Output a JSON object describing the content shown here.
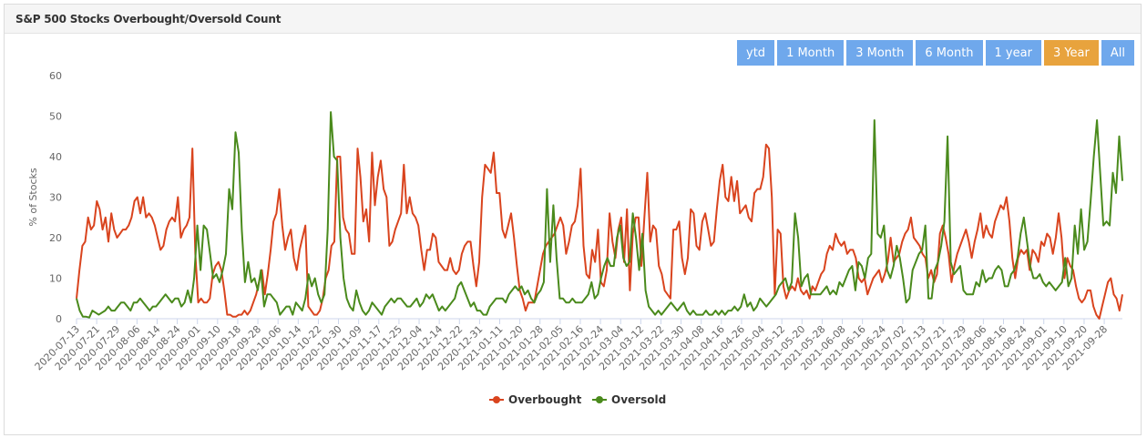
{
  "header": {
    "title": "S&P 500 Stocks Overbought/Oversold Count"
  },
  "range_buttons": [
    {
      "label": "ytd",
      "active": false
    },
    {
      "label": "1 Month",
      "active": false
    },
    {
      "label": "3 Month",
      "active": false
    },
    {
      "label": "6 Month",
      "active": false
    },
    {
      "label": "1 year",
      "active": false
    },
    {
      "label": "3 Year",
      "active": true
    },
    {
      "label": "All",
      "active": false
    }
  ],
  "colors": {
    "overbought": "#d9441e",
    "oversold": "#4a8a1c",
    "active_button": "#e8a33d",
    "button": "#6fa8ec"
  },
  "chart_data": {
    "type": "line",
    "title": "",
    "xlabel": "",
    "ylabel": "% of Stocks",
    "ylim": [
      0,
      60
    ],
    "yticks": [
      0,
      10,
      20,
      30,
      40,
      50,
      60
    ],
    "grid": false,
    "legend": "bottom-center",
    "x_tick_labels": [
      "2020-07-13",
      "2020-07-21",
      "2020-07-29",
      "2020-08-06",
      "2020-08-14",
      "2020-08-24",
      "2020-09-01",
      "2020-09-10",
      "2020-09-18",
      "2020-09-28",
      "2020-10-06",
      "2020-10-14",
      "2020-10-22",
      "2020-10-30",
      "2020-11-09",
      "2020-11-17",
      "2020-11-25",
      "2020-12-04",
      "2020-12-14",
      "2020-12-22",
      "2020-12-31",
      "2021-01-11",
      "2021-01-20",
      "2021-01-28",
      "2021-02-05",
      "2021-02-16",
      "2021-02-24",
      "2021-03-04",
      "2021-03-12",
      "2021-03-22",
      "2021-03-30",
      "2021-04-08",
      "2021-04-16",
      "2021-04-26",
      "2021-05-04",
      "2021-05-12",
      "2021-05-20",
      "2021-05-28",
      "2021-06-08",
      "2021-06-16",
      "2021-06-24",
      "2021-07-02",
      "2021-07-13",
      "2021-07-21",
      "2021-07-29",
      "2021-08-06",
      "2021-08-16",
      "2021-08-24",
      "2021-09-01",
      "2021-09-10",
      "2021-09-20",
      "2021-09-28"
    ],
    "series": [
      {
        "name": "Overbought",
        "values": [
          5,
          12,
          18,
          19,
          25,
          22,
          23,
          29,
          27,
          22,
          25,
          19,
          26,
          22,
          20,
          21,
          22,
          22,
          23,
          25,
          29,
          30,
          26,
          30,
          25,
          26,
          25,
          23,
          20,
          17,
          18,
          22,
          24,
          25,
          24,
          30,
          20,
          22,
          23,
          25,
          42,
          16,
          4,
          5,
          4,
          4,
          5,
          11,
          13,
          14,
          12,
          7,
          1,
          1,
          0.5,
          0.5,
          1,
          1,
          2,
          1,
          2,
          4,
          6,
          9,
          12,
          6,
          11,
          17,
          24,
          26,
          32,
          23,
          17,
          20,
          22,
          15,
          12,
          17,
          20,
          23,
          3,
          2,
          1,
          1,
          2,
          5,
          10,
          12,
          18,
          19,
          40,
          40,
          25,
          22,
          21,
          16,
          16,
          42,
          35,
          24,
          27,
          19,
          41,
          28,
          35,
          39,
          32,
          30,
          18,
          19,
          22,
          24,
          26,
          38,
          26,
          30,
          26,
          25,
          23,
          17,
          12,
          17,
          17,
          21,
          20,
          14,
          13,
          12,
          12,
          15,
          12,
          11,
          12,
          16,
          18,
          19,
          19,
          13,
          8,
          14,
          30,
          38,
          37,
          36,
          41,
          31,
          31,
          22,
          20,
          23,
          26,
          20,
          13,
          7,
          5,
          2,
          4,
          4,
          4,
          8,
          12,
          16,
          18,
          19,
          20,
          21,
          23,
          25,
          23,
          16,
          19,
          23,
          24,
          28,
          37,
          18,
          11,
          10,
          17,
          14,
          22,
          9,
          8,
          12,
          26,
          19,
          15,
          22,
          25,
          14,
          27,
          7,
          21,
          25,
          25,
          13,
          25,
          36,
          19,
          23,
          22,
          13,
          11,
          7,
          6,
          5,
          22,
          22,
          24,
          15,
          11,
          15,
          27,
          26,
          18,
          17,
          24,
          26,
          22,
          18,
          19,
          27,
          34,
          38,
          30,
          29,
          35,
          29,
          34,
          26,
          27,
          28,
          25,
          24,
          31,
          32,
          32,
          35,
          43,
          42,
          30,
          6,
          22,
          21,
          8,
          5,
          7,
          8,
          7,
          10,
          7,
          6,
          7,
          5,
          8,
          7,
          9,
          11,
          12,
          16,
          18,
          17,
          21,
          19,
          18,
          19,
          16,
          17,
          17,
          15,
          10,
          9,
          10,
          6,
          8,
          10,
          11,
          12,
          9,
          11,
          14,
          20,
          14,
          15,
          16,
          19,
          21,
          22,
          25,
          20,
          19,
          18,
          16,
          15,
          10,
          12,
          9,
          11,
          21,
          23,
          20,
          16,
          9,
          13,
          16,
          18,
          20,
          22,
          19,
          15,
          19,
          22,
          26,
          20,
          23,
          21,
          20,
          24,
          26,
          28,
          27,
          30,
          24,
          15,
          10,
          15,
          17,
          16,
          17,
          12,
          17,
          16,
          14,
          19,
          18,
          21,
          20,
          16,
          20,
          26,
          20,
          10,
          15,
          13,
          12,
          8,
          5,
          4,
          5,
          7,
          7,
          3,
          1,
          0,
          3,
          6,
          9,
          10,
          6,
          5,
          2,
          6
        ]
      },
      {
        "name": "Oversold",
        "values": [
          5,
          2,
          0.5,
          0.5,
          0.3,
          2,
          1.5,
          1,
          1.5,
          2,
          3,
          2,
          2,
          3,
          4,
          4,
          3,
          2,
          4,
          4,
          5,
          4,
          3,
          2,
          3,
          3,
          4,
          5,
          6,
          5,
          4,
          5,
          5,
          3,
          4,
          7,
          4,
          10,
          23,
          12,
          23,
          22,
          16,
          10,
          11,
          9,
          12,
          16,
          32,
          27,
          46,
          41,
          22,
          9,
          14,
          9,
          10,
          7,
          12,
          3,
          6,
          6,
          5,
          4,
          1,
          2,
          3,
          3,
          1,
          4,
          3,
          2,
          5,
          11,
          8,
          10,
          6,
          4,
          6,
          22,
          51,
          40,
          39,
          20,
          10,
          5,
          3,
          2,
          7,
          4,
          2,
          1,
          2,
          4,
          3,
          2,
          1,
          3,
          4,
          5,
          4,
          5,
          5,
          4,
          3,
          3,
          4,
          5,
          3,
          4,
          6,
          5,
          6,
          4,
          2,
          3,
          2,
          3,
          4,
          5,
          8,
          9,
          7,
          5,
          3,
          4,
          2,
          2,
          1,
          1,
          3,
          4,
          5,
          5,
          5,
          4,
          6,
          7,
          8,
          7,
          8,
          6,
          7,
          5,
          4,
          6,
          7,
          9,
          32,
          14,
          28,
          15,
          5,
          5,
          4,
          4,
          5,
          4,
          4,
          4,
          5,
          6,
          9,
          5,
          6,
          10,
          13,
          15,
          13,
          13,
          20,
          23,
          15,
          13,
          14,
          26,
          20,
          12,
          21,
          7,
          3,
          2,
          1,
          2,
          1,
          2,
          3,
          4,
          3,
          2,
          3,
          4,
          2,
          1,
          2,
          1,
          1,
          1,
          2,
          1,
          1,
          2,
          1,
          2,
          1,
          2,
          2,
          3,
          2,
          3,
          6,
          3,
          4,
          2,
          3,
          5,
          4,
          3,
          4,
          5,
          6,
          8,
          9,
          10,
          7,
          9,
          26,
          20,
          8,
          10,
          11,
          6,
          6,
          6,
          6,
          7,
          8,
          6,
          7,
          6,
          9,
          8,
          10,
          12,
          13,
          7,
          14,
          13,
          10,
          15,
          16,
          49,
          21,
          20,
          23,
          12,
          10,
          13,
          18,
          15,
          10,
          4,
          5,
          12,
          14,
          16,
          17,
          23,
          5,
          5,
          12,
          14,
          18,
          24,
          45,
          14,
          11,
          12,
          13,
          7,
          6,
          6,
          6,
          9,
          8,
          12,
          9,
          10,
          10,
          12,
          13,
          12,
          8,
          8,
          11,
          12,
          15,
          21,
          25,
          19,
          13,
          10,
          10,
          11,
          9,
          8,
          9,
          8,
          7,
          8,
          9,
          15,
          8,
          10,
          23,
          16,
          27,
          17,
          19,
          29,
          40,
          49,
          36,
          23,
          24,
          23,
          36,
          31,
          45,
          34
        ]
      }
    ]
  }
}
